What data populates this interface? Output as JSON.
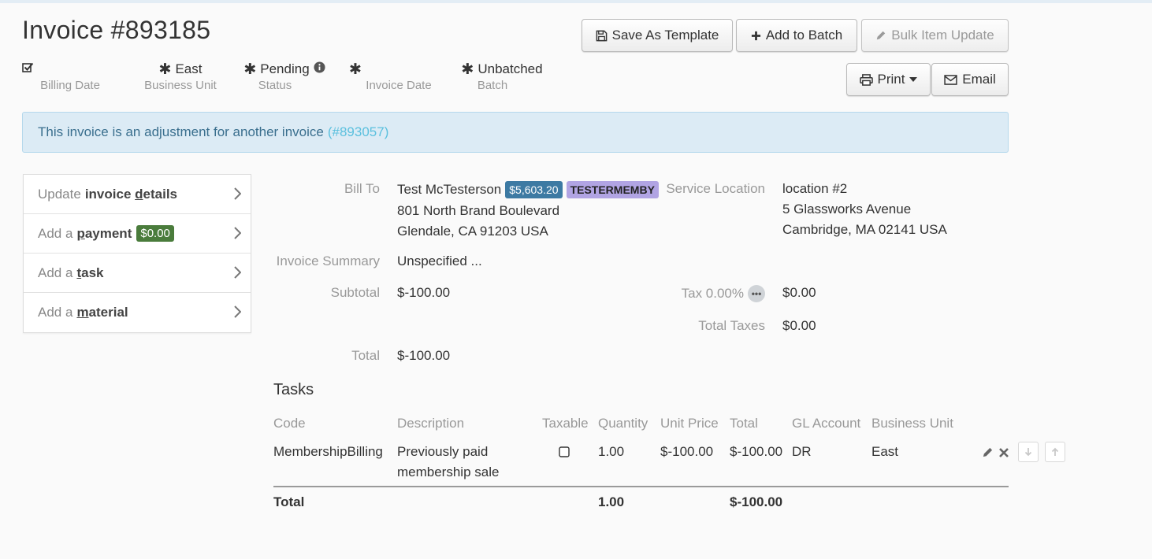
{
  "header": {
    "title": "Invoice #893185",
    "buttons": {
      "save_template": "Save As Template",
      "add_batch": "Add to Batch",
      "bulk_update": "Bulk Item Update",
      "print": "Print",
      "email": "Email"
    }
  },
  "meta": {
    "billing_date": {
      "value": "",
      "label": "Billing Date"
    },
    "business_unit": {
      "value": "East",
      "label": "Business Unit"
    },
    "status": {
      "value": "Pending",
      "label": "Status"
    },
    "invoice_date": {
      "value": "",
      "label": "Invoice Date"
    },
    "batch": {
      "value": "Unbatched",
      "label": "Batch"
    }
  },
  "alert": {
    "text": "This invoice is an adjustment for another invoice",
    "link": "(#893057)"
  },
  "sidebar": {
    "items": [
      {
        "prefix": "Update",
        "bold_pre": "invoice ",
        "key": "d",
        "bold_post": "etails"
      },
      {
        "prefix": "Add a",
        "bold_pre": "",
        "key": "p",
        "bold_post": "ayment",
        "badge": "$0.00"
      },
      {
        "prefix": "Add a",
        "bold_pre": "",
        "key": "t",
        "bold_post": "ask"
      },
      {
        "prefix": "Add a",
        "bold_pre": "",
        "key": "m",
        "bold_post": "aterial"
      }
    ]
  },
  "details": {
    "bill_to_label": "Bill To",
    "customer_name": "Test McTesterson",
    "balance_badge": "$5,603.20",
    "membership_badge": "TESTERMEMBY",
    "address_line1": "801 North Brand Boulevard",
    "address_line2": "Glendale, CA 91203 USA",
    "service_location_label": "Service Location",
    "location_name": "location #2",
    "location_line1": "5 Glassworks Avenue",
    "location_line2": "Cambridge, MA 02141 USA",
    "summary_label": "Invoice Summary",
    "summary_value": "Unspecified ...",
    "subtotal_label": "Subtotal",
    "subtotal_value": "$-100.00",
    "tax_label": "Tax 0.00%",
    "tax_dots": "•••",
    "tax_value": "$0.00",
    "total_taxes_label": "Total Taxes",
    "total_taxes_value": "$0.00",
    "total_label": "Total",
    "total_value": "$-100.00"
  },
  "tasks": {
    "title": "Tasks",
    "columns": [
      "Code",
      "Description",
      "Taxable",
      "Quantity",
      "Unit Price",
      "Total",
      "GL Account",
      "Business Unit"
    ],
    "rows": [
      {
        "code": "MembershipBilling",
        "description_line1": "Previously paid",
        "description_line2": "membership sale",
        "taxable": false,
        "quantity": "1.00",
        "unit_price": "$-100.00",
        "total": "$-100.00",
        "gl_account": "DR",
        "business_unit": "East"
      }
    ],
    "totals": {
      "label": "Total",
      "quantity": "1.00",
      "total": "$-100.00"
    }
  }
}
